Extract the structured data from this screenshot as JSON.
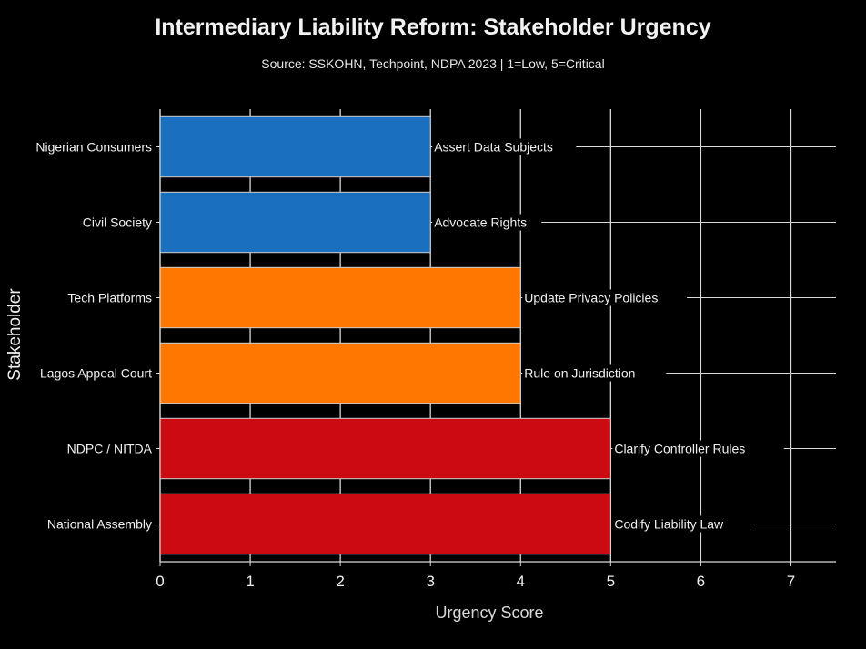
{
  "chart_data": {
    "type": "bar",
    "orientation": "horizontal",
    "title": "Intermediary Liability Reform: Stakeholder Urgency",
    "subtitle": "Source: SSKOHN, Techpoint, NDPA 2023 | 1=Low, 5=Critical",
    "xlabel": "Urgency Score",
    "ylabel": "Stakeholder",
    "xlim": [
      0,
      7.5
    ],
    "xticks": [
      0,
      1,
      2,
      3,
      4,
      5,
      6,
      7
    ],
    "grid": true,
    "categories": [
      "Nigerian Consumers",
      "Civil Society",
      "Tech Platforms",
      "Lagos Appeal Court",
      "NDPC / NITDA",
      "National Assembly"
    ],
    "values": [
      3,
      3,
      4,
      4,
      5,
      5
    ],
    "actions": [
      "Assert Data Subjects",
      "Advocate Rights",
      "Update Privacy Policies",
      "Rule on Jurisdiction",
      "Clarify Controller Rules",
      "Codify Liability Law"
    ],
    "colors": [
      "#1a6fbf",
      "#1a6fbf",
      "#ff7700",
      "#ff7700",
      "#cc0a11",
      "#cc0a11"
    ]
  }
}
